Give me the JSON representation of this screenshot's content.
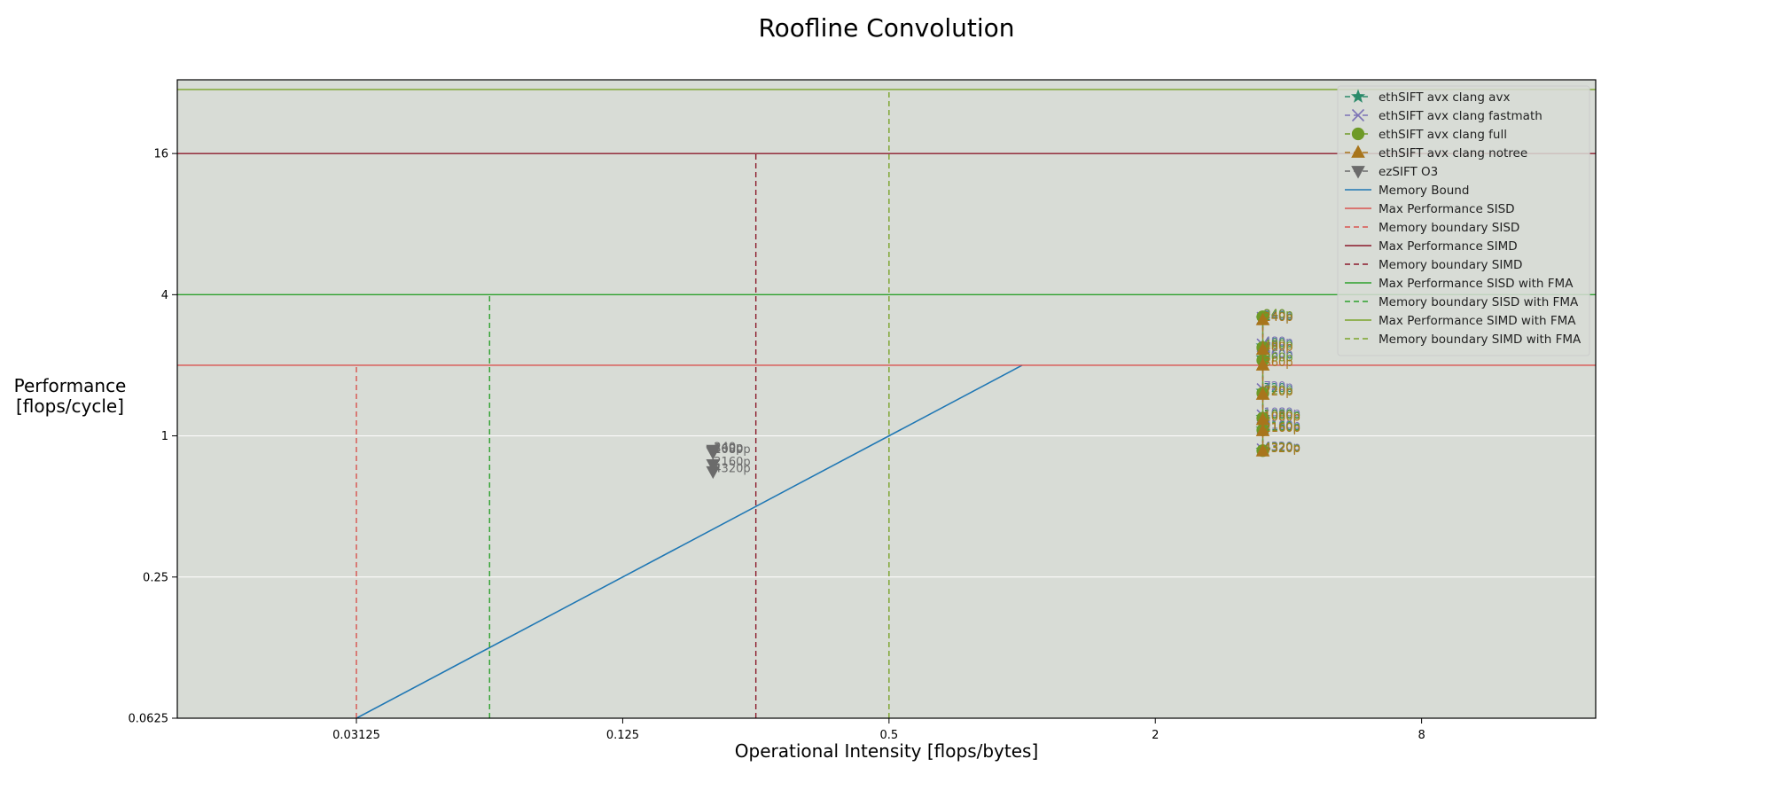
{
  "chart_data": {
    "type": "line",
    "title": "Roofline Convolution",
    "xlabel": "Operational Intensity [flops/bytes]",
    "ylabel_lines": [
      "Performance",
      "[flops/cycle]"
    ],
    "x_scale": "log2",
    "y_scale": "log2",
    "xlim": [
      0.0123,
      19.8
    ],
    "ylim": [
      0.0625,
      33.0
    ],
    "x_ticks": [
      {
        "value": 0.03125,
        "label": "0.03125"
      },
      {
        "value": 0.125,
        "label": "0.125"
      },
      {
        "value": 0.5,
        "label": "0.5"
      },
      {
        "value": 2,
        "label": "2"
      },
      {
        "value": 8,
        "label": "8"
      }
    ],
    "y_ticks": [
      {
        "value": 0.0625,
        "label": "0.0625"
      },
      {
        "value": 0.25,
        "label": "0.25"
      },
      {
        "value": 1,
        "label": "1"
      },
      {
        "value": 4,
        "label": "4"
      },
      {
        "value": 16,
        "label": "16"
      }
    ],
    "grid": "horizontal",
    "legend_position": "top-right",
    "background": "#d8dcd6",
    "series": [
      {
        "name": "ethSIFT avx clang avx",
        "color": "#2a8a6a",
        "marker": "star",
        "dash": "dashed",
        "points": [
          {
            "x": 3.5,
            "y": 3.15,
            "label": "240p"
          },
          {
            "x": 3.5,
            "y": 2.42,
            "label": "480p"
          },
          {
            "x": 3.5,
            "y": 2.15,
            "label": "360p"
          },
          {
            "x": 3.5,
            "y": 1.55,
            "label": "720p"
          },
          {
            "x": 3.5,
            "y": 1.2,
            "label": "1080p"
          },
          {
            "x": 3.5,
            "y": 1.07,
            "label": "2160p"
          },
          {
            "x": 3.5,
            "y": 0.87,
            "label": "4320p"
          }
        ]
      },
      {
        "name": "ethSIFT avx clang fastmath",
        "color": "#7b72b5",
        "marker": "x",
        "dash": "dashed",
        "points": [
          {
            "x": 3.5,
            "y": 3.18,
            "label": "240p"
          },
          {
            "x": 3.5,
            "y": 2.45,
            "label": "480p"
          },
          {
            "x": 3.5,
            "y": 2.18,
            "label": "360p"
          },
          {
            "x": 3.5,
            "y": 1.58,
            "label": "720p"
          },
          {
            "x": 3.5,
            "y": 1.22,
            "label": "1080p"
          },
          {
            "x": 3.5,
            "y": 1.08,
            "label": "2160p"
          },
          {
            "x": 3.5,
            "y": 0.875,
            "label": "4320p"
          }
        ]
      },
      {
        "name": "ethSIFT avx clang full",
        "color": "#6e9a27",
        "marker": "circle",
        "dash": "dashed",
        "points": [
          {
            "x": 3.5,
            "y": 3.22,
            "label": "240p"
          },
          {
            "x": 3.5,
            "y": 2.38,
            "label": "480p"
          },
          {
            "x": 3.5,
            "y": 2.1,
            "label": "360p"
          },
          {
            "x": 3.5,
            "y": 1.52,
            "label": "720p"
          },
          {
            "x": 3.5,
            "y": 1.19,
            "label": "1080p"
          },
          {
            "x": 3.5,
            "y": 1.06,
            "label": "2160p"
          },
          {
            "x": 3.5,
            "y": 0.865,
            "label": "4320p"
          }
        ]
      },
      {
        "name": "ethSIFT avx clang notree",
        "color": "#a8751c",
        "marker": "triangle-up",
        "dash": "dashed",
        "points": [
          {
            "x": 3.5,
            "y": 3.12,
            "label": "240p"
          },
          {
            "x": 3.5,
            "y": 2.33,
            "label": "480p"
          },
          {
            "x": 3.5,
            "y": 2.0,
            "label": "360p"
          },
          {
            "x": 3.5,
            "y": 1.5,
            "label": "720p"
          },
          {
            "x": 3.5,
            "y": 1.17,
            "label": "1080p"
          },
          {
            "x": 3.5,
            "y": 1.05,
            "label": "2160p"
          },
          {
            "x": 3.5,
            "y": 0.86,
            "label": "4320p"
          }
        ]
      },
      {
        "name": "ezSIFT O3",
        "color": "#6b6b6b",
        "marker": "triangle-down",
        "dash": "dashed",
        "points": [
          {
            "x": 0.2,
            "y": 0.87,
            "label": "240p"
          },
          {
            "x": 0.2,
            "y": 0.86,
            "label": "360p"
          },
          {
            "x": 0.2,
            "y": 0.85,
            "label": "1080p"
          },
          {
            "x": 0.2,
            "y": 0.755,
            "label": "2160p"
          },
          {
            "x": 0.2,
            "y": 0.705,
            "label": "4320p"
          }
        ]
      }
    ],
    "reference_lines": [
      {
        "name": "Memory Bound",
        "kind": "bandwidth",
        "slope": 2,
        "color": "#1f77b4",
        "dash": "solid"
      },
      {
        "name": "Max Performance SISD",
        "kind": "horizontal",
        "value": 2,
        "color": "#d9534f",
        "dash": "solid"
      },
      {
        "name": "Memory boundary SISD",
        "kind": "vertical",
        "value": 0.03125,
        "top": 2,
        "color": "#d9534f",
        "dash": "dashed"
      },
      {
        "name": "Max Performance SIMD",
        "kind": "horizontal",
        "value": 16,
        "color": "#8b1a2b",
        "dash": "solid"
      },
      {
        "name": "Memory boundary SIMD",
        "kind": "vertical",
        "value": 0.25,
        "top": 16,
        "color": "#8b1a2b",
        "dash": "dashed"
      },
      {
        "name": "Max Performance SISD with FMA",
        "kind": "horizontal",
        "value": 4,
        "color": "#2ca02c",
        "dash": "solid"
      },
      {
        "name": "Memory boundary SISD with FMA",
        "kind": "vertical",
        "value": 0.0625,
        "top": 4,
        "color": "#2ca02c",
        "dash": "dashed"
      },
      {
        "name": "Max Performance SIMD with FMA",
        "kind": "horizontal",
        "value": 30,
        "color": "#7aa32a",
        "dash": "solid"
      },
      {
        "name": "Memory boundary SIMD with FMA",
        "kind": "vertical",
        "value": 0.5,
        "top": 30,
        "color": "#7aa32a",
        "dash": "dashed"
      }
    ]
  }
}
